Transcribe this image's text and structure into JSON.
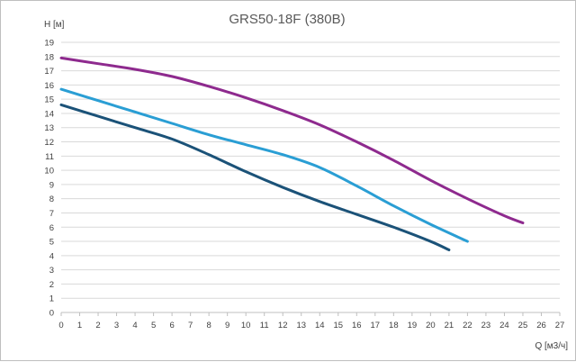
{
  "chart_data": {
    "type": "line",
    "title": "GRS50-18F (380В)",
    "xlabel": "Q [м3/ч]",
    "ylabel": "H [м]",
    "xlim": [
      0,
      27
    ],
    "ylim": [
      0,
      19
    ],
    "x_ticks": [
      0,
      1,
      2,
      3,
      4,
      5,
      6,
      7,
      8,
      9,
      10,
      11,
      12,
      13,
      14,
      15,
      16,
      17,
      18,
      19,
      20,
      21,
      22,
      23,
      24,
      25,
      26,
      27
    ],
    "y_ticks": [
      0,
      1,
      2,
      3,
      4,
      5,
      6,
      7,
      8,
      9,
      10,
      11,
      12,
      13,
      14,
      15,
      16,
      17,
      18,
      19
    ],
    "grid": true,
    "series": [
      {
        "color": "#8e2a8e",
        "x": [
          0,
          2,
          4,
          6,
          8,
          10,
          12,
          14,
          16,
          18,
          20,
          22,
          24,
          25
        ],
        "y": [
          17.9,
          17.5,
          17.1,
          16.6,
          15.9,
          15.1,
          14.2,
          13.2,
          12.0,
          10.7,
          9.3,
          8.0,
          6.8,
          6.3
        ]
      },
      {
        "color": "#2a9ed4",
        "x": [
          0,
          2,
          4,
          6,
          8,
          10,
          12,
          14,
          16,
          18,
          20,
          22
        ],
        "y": [
          15.7,
          14.9,
          14.1,
          13.3,
          12.5,
          11.8,
          11.1,
          10.2,
          8.9,
          7.5,
          6.2,
          5.0
        ]
      },
      {
        "color": "#1b5278",
        "x": [
          0,
          2,
          4,
          6,
          8,
          10,
          12,
          14,
          16,
          18,
          20,
          21
        ],
        "y": [
          14.6,
          13.8,
          13.0,
          12.2,
          11.1,
          9.9,
          8.8,
          7.8,
          6.9,
          6.0,
          5.0,
          4.4
        ]
      }
    ]
  }
}
